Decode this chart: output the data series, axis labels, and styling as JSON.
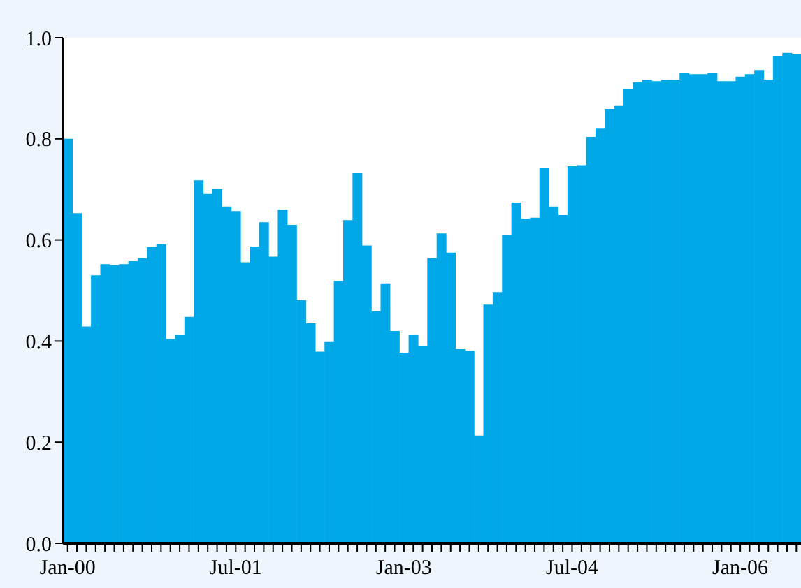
{
  "chart_data": {
    "type": "bar",
    "categories": [
      "Jan-00",
      null,
      null,
      null,
      null,
      null,
      null,
      null,
      null,
      null,
      null,
      null,
      null,
      null,
      null,
      null,
      null,
      null,
      "Jul-01",
      null,
      null,
      null,
      null,
      null,
      null,
      null,
      null,
      null,
      null,
      null,
      null,
      null,
      null,
      null,
      null,
      null,
      "Jan-03",
      null,
      null,
      null,
      null,
      null,
      null,
      null,
      null,
      null,
      null,
      null,
      null,
      null,
      null,
      null,
      null,
      null,
      "Jul-04",
      null,
      null,
      null,
      null,
      null,
      null,
      null,
      null,
      null,
      null,
      null,
      null,
      null,
      null,
      null,
      null,
      null,
      "Jan-06",
      null,
      null,
      null,
      null,
      null,
      null
    ],
    "values": [
      0.8,
      0.653,
      0.429,
      0.53,
      0.552,
      0.55,
      0.552,
      0.558,
      0.564,
      0.586,
      0.591,
      0.404,
      0.412,
      0.448,
      0.718,
      0.691,
      0.701,
      0.666,
      0.657,
      0.556,
      0.587,
      0.635,
      0.567,
      0.66,
      0.63,
      0.481,
      0.435,
      0.379,
      0.398,
      0.519,
      0.639,
      0.732,
      0.589,
      0.459,
      0.514,
      0.42,
      0.377,
      0.412,
      0.39,
      0.564,
      0.613,
      0.575,
      0.384,
      0.381,
      0.213,
      0.472,
      0.497,
      0.61,
      0.674,
      0.642,
      0.644,
      0.743,
      0.666,
      0.649,
      0.746,
      0.748,
      0.804,
      0.82,
      0.859,
      0.865,
      0.898,
      0.912,
      0.917,
      0.914,
      0.917,
      0.917,
      0.931,
      0.928,
      0.928,
      0.931,
      0.914,
      0.914,
      0.923,
      0.928,
      0.936,
      0.917,
      0.964,
      0.97,
      0.967
    ],
    "color": "#00a8e8",
    "ylim": [
      0,
      1
    ],
    "yticks": [
      {
        "value": 0,
        "label": "0.0"
      },
      0.2,
      0.4,
      0.6,
      0.8,
      {
        "value": 1,
        "label": "1.0"
      }
    ]
  }
}
